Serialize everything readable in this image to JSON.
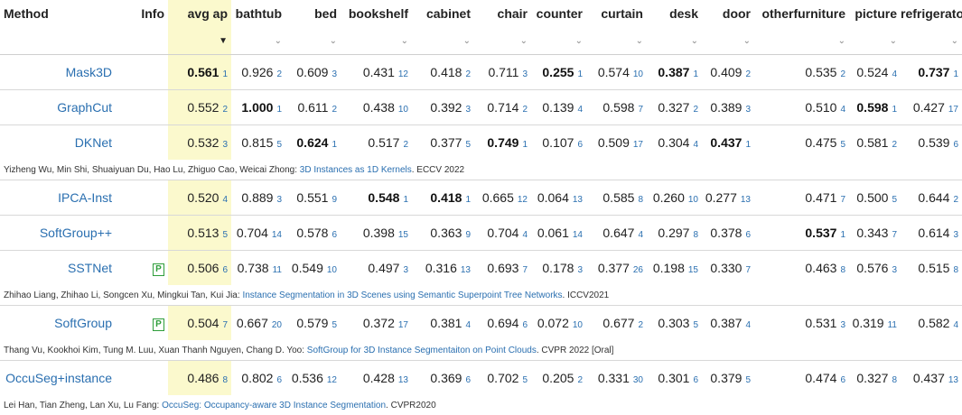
{
  "headers": {
    "method": "Method",
    "info": "Info",
    "avg_ap": "avg ap",
    "bathtub": "bathtub",
    "bed": "bed",
    "bookshelf": "bookshelf",
    "cabinet": "cabinet",
    "chair": "chair",
    "counter": "counter",
    "curtain": "curtain",
    "desk": "desk",
    "door": "door",
    "otherfurniture": "otherfurniture",
    "picture": "picture",
    "refrigerator": "refrigerator"
  },
  "sort": {
    "active_caret": "▼",
    "caret": "⌄"
  },
  "colors": {
    "highlight": "#fbf9cd",
    "link": "#2a6fb0",
    "badge": "#2e9d3a"
  },
  "rows": [
    {
      "method": "Mask3D",
      "badge": "",
      "cells": [
        [
          "0.561",
          "1",
          true
        ],
        [
          "0.926",
          "2",
          false
        ],
        [
          "0.609",
          "3",
          false
        ],
        [
          "0.431",
          "12",
          false
        ],
        [
          "0.418",
          "2",
          false
        ],
        [
          "0.711",
          "3",
          false
        ],
        [
          "0.255",
          "1",
          true
        ],
        [
          "0.574",
          "10",
          false
        ],
        [
          "0.387",
          "1",
          true
        ],
        [
          "0.409",
          "2",
          false
        ],
        [
          "0.535",
          "2",
          false
        ],
        [
          "0.524",
          "4",
          false
        ],
        [
          "0.737",
          "1",
          true
        ]
      ],
      "cite": null
    },
    {
      "method": "GraphCut",
      "badge": "",
      "cells": [
        [
          "0.552",
          "2",
          false
        ],
        [
          "1.000",
          "1",
          true
        ],
        [
          "0.611",
          "2",
          false
        ],
        [
          "0.438",
          "10",
          false
        ],
        [
          "0.392",
          "3",
          false
        ],
        [
          "0.714",
          "2",
          false
        ],
        [
          "0.139",
          "4",
          false
        ],
        [
          "0.598",
          "7",
          false
        ],
        [
          "0.327",
          "2",
          false
        ],
        [
          "0.389",
          "3",
          false
        ],
        [
          "0.510",
          "4",
          false
        ],
        [
          "0.598",
          "1",
          true
        ],
        [
          "0.427",
          "17",
          false
        ]
      ],
      "cite": null
    },
    {
      "method": "DKNet",
      "badge": "",
      "cells": [
        [
          "0.532",
          "3",
          false
        ],
        [
          "0.815",
          "5",
          false
        ],
        [
          "0.624",
          "1",
          true
        ],
        [
          "0.517",
          "2",
          false
        ],
        [
          "0.377",
          "5",
          false
        ],
        [
          "0.749",
          "1",
          true
        ],
        [
          "0.107",
          "6",
          false
        ],
        [
          "0.509",
          "17",
          false
        ],
        [
          "0.304",
          "4",
          false
        ],
        [
          "0.437",
          "1",
          true
        ],
        [
          "0.475",
          "5",
          false
        ],
        [
          "0.581",
          "2",
          false
        ],
        [
          "0.539",
          "6",
          false
        ]
      ],
      "cite": {
        "authors": "Yizheng Wu, Min Shi, Shuaiyuan Du, Hao Lu, Zhiguo Cao, Weicai Zhong: ",
        "title": "3D Instances as 1D Kernels",
        "venue": ". ECCV 2022"
      }
    },
    {
      "method": "IPCA-Inst",
      "badge": "",
      "cells": [
        [
          "0.520",
          "4",
          false
        ],
        [
          "0.889",
          "3",
          false
        ],
        [
          "0.551",
          "9",
          false
        ],
        [
          "0.548",
          "1",
          true
        ],
        [
          "0.418",
          "1",
          true
        ],
        [
          "0.665",
          "12",
          false
        ],
        [
          "0.064",
          "13",
          false
        ],
        [
          "0.585",
          "8",
          false
        ],
        [
          "0.260",
          "10",
          false
        ],
        [
          "0.277",
          "13",
          false
        ],
        [
          "0.471",
          "7",
          false
        ],
        [
          "0.500",
          "5",
          false
        ],
        [
          "0.644",
          "2",
          false
        ]
      ],
      "cite": null
    },
    {
      "method": "SoftGroup++",
      "badge": "",
      "cells": [
        [
          "0.513",
          "5",
          false
        ],
        [
          "0.704",
          "14",
          false
        ],
        [
          "0.578",
          "6",
          false
        ],
        [
          "0.398",
          "15",
          false
        ],
        [
          "0.363",
          "9",
          false
        ],
        [
          "0.704",
          "4",
          false
        ],
        [
          "0.061",
          "14",
          false
        ],
        [
          "0.647",
          "4",
          false
        ],
        [
          "0.297",
          "8",
          false
        ],
        [
          "0.378",
          "6",
          false
        ],
        [
          "0.537",
          "1",
          true
        ],
        [
          "0.343",
          "7",
          false
        ],
        [
          "0.614",
          "3",
          false
        ]
      ],
      "cite": null
    },
    {
      "method": "SSTNet",
      "badge": "P",
      "cells": [
        [
          "0.506",
          "6",
          false
        ],
        [
          "0.738",
          "11",
          false
        ],
        [
          "0.549",
          "10",
          false
        ],
        [
          "0.497",
          "3",
          false
        ],
        [
          "0.316",
          "13",
          false
        ],
        [
          "0.693",
          "7",
          false
        ],
        [
          "0.178",
          "3",
          false
        ],
        [
          "0.377",
          "26",
          false
        ],
        [
          "0.198",
          "15",
          false
        ],
        [
          "0.330",
          "7",
          false
        ],
        [
          "0.463",
          "8",
          false
        ],
        [
          "0.576",
          "3",
          false
        ],
        [
          "0.515",
          "8",
          false
        ]
      ],
      "cite": {
        "authors": "Zhihao Liang, Zhihao Li, Songcen Xu, Mingkui Tan, Kui Jia: ",
        "title": "Instance Segmentation in 3D Scenes using Semantic Superpoint Tree Networks",
        "venue": ". ICCV2021"
      }
    },
    {
      "method": "SoftGroup",
      "badge": "P",
      "cells": [
        [
          "0.504",
          "7",
          false
        ],
        [
          "0.667",
          "20",
          false
        ],
        [
          "0.579",
          "5",
          false
        ],
        [
          "0.372",
          "17",
          false
        ],
        [
          "0.381",
          "4",
          false
        ],
        [
          "0.694",
          "6",
          false
        ],
        [
          "0.072",
          "10",
          false
        ],
        [
          "0.677",
          "2",
          false
        ],
        [
          "0.303",
          "5",
          false
        ],
        [
          "0.387",
          "4",
          false
        ],
        [
          "0.531",
          "3",
          false
        ],
        [
          "0.319",
          "11",
          false
        ],
        [
          "0.582",
          "4",
          false
        ]
      ],
      "cite": {
        "authors": "Thang Vu, Kookhoi Kim, Tung M. Luu, Xuan Thanh Nguyen, Chang D. Yoo: ",
        "title": "SoftGroup for 3D Instance Segmentaiton on Point Clouds",
        "venue": ". CVPR 2022 [Oral]"
      }
    },
    {
      "method": "OccuSeg+instance",
      "badge": "",
      "cells": [
        [
          "0.486",
          "8",
          false
        ],
        [
          "0.802",
          "6",
          false
        ],
        [
          "0.536",
          "12",
          false
        ],
        [
          "0.428",
          "13",
          false
        ],
        [
          "0.369",
          "6",
          false
        ],
        [
          "0.702",
          "5",
          false
        ],
        [
          "0.205",
          "2",
          false
        ],
        [
          "0.331",
          "30",
          false
        ],
        [
          "0.301",
          "6",
          false
        ],
        [
          "0.379",
          "5",
          false
        ],
        [
          "0.474",
          "6",
          false
        ],
        [
          "0.327",
          "8",
          false
        ],
        [
          "0.437",
          "13",
          false
        ]
      ],
      "cite": {
        "authors": "Lei Han, Tian Zheng, Lan Xu, Lu Fang: ",
        "title": "OccuSeg: Occupancy-aware 3D Instance Segmentation",
        "venue": ". CVPR2020"
      }
    }
  ]
}
